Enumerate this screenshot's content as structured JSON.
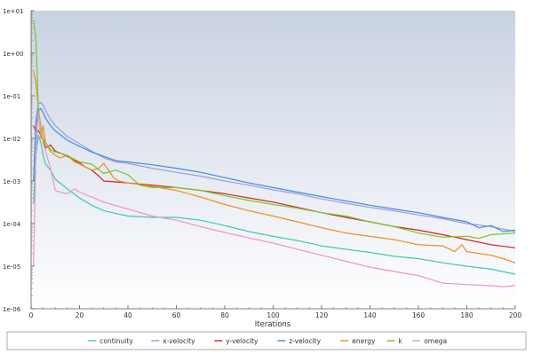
{
  "chart_data": {
    "type": "line",
    "xlabel": "Iterations",
    "ylabel": "",
    "xlim": [
      0,
      200
    ],
    "ylim": [
      1e-06,
      10
    ],
    "yscale": "log",
    "x_ticks": [
      0,
      20,
      40,
      60,
      80,
      100,
      120,
      140,
      160,
      180,
      200
    ],
    "y_ticks": [
      {
        "value": 10,
        "label": "1e+01"
      },
      {
        "value": 1,
        "label": "1e+00"
      },
      {
        "value": 0.1,
        "label": "1e-01"
      },
      {
        "value": 0.01,
        "label": "1e-02"
      },
      {
        "value": 0.001,
        "label": "1e-03"
      },
      {
        "value": 0.0001,
        "label": "1e-04"
      },
      {
        "value": 1e-05,
        "label": "1e-05"
      },
      {
        "value": 1e-06,
        "label": "1e-06"
      }
    ],
    "grid": false,
    "background_gradient": [
      "#c9d2e2",
      "#ffffff"
    ],
    "legend_position": "bottom",
    "series": [
      {
        "name": "continuity",
        "color": "#40c8b0",
        "points": [
          [
            1,
            0.0003
          ],
          [
            2,
            0.004
          ],
          [
            3,
            0.012
          ],
          [
            4,
            0.008
          ],
          [
            5,
            0.004
          ],
          [
            6,
            0.0025
          ],
          [
            8,
            0.0018
          ],
          [
            10,
            0.0011
          ],
          [
            15,
            0.00065
          ],
          [
            20,
            0.0004
          ],
          [
            25,
            0.00027
          ],
          [
            30,
            0.0002
          ],
          [
            40,
            0.00015
          ],
          [
            50,
            0.00014
          ],
          [
            60,
            0.00014
          ],
          [
            70,
            0.00012
          ],
          [
            80,
            9e-05
          ],
          [
            90,
            6.5e-05
          ],
          [
            100,
            5e-05
          ],
          [
            110,
            4e-05
          ],
          [
            120,
            3e-05
          ],
          [
            130,
            2.5e-05
          ],
          [
            140,
            2.1e-05
          ],
          [
            150,
            1.7e-05
          ],
          [
            160,
            1.5e-05
          ],
          [
            170,
            1.2e-05
          ],
          [
            180,
            1e-05
          ],
          [
            190,
            8.5e-06
          ],
          [
            200,
            6.5e-06
          ]
        ]
      },
      {
        "name": "x-velocity",
        "color": "#a098e0",
        "points": [
          [
            1,
            0.001
          ],
          [
            2,
            0.03
          ],
          [
            3,
            0.065
          ],
          [
            4,
            0.07
          ],
          [
            5,
            0.06
          ],
          [
            6,
            0.045
          ],
          [
            8,
            0.028
          ],
          [
            10,
            0.02
          ],
          [
            15,
            0.011
          ],
          [
            20,
            0.0075
          ],
          [
            25,
            0.005
          ],
          [
            30,
            0.0035
          ],
          [
            35,
            0.0028
          ],
          [
            40,
            0.0026
          ],
          [
            50,
            0.002
          ],
          [
            60,
            0.0016
          ],
          [
            70,
            0.0013
          ],
          [
            80,
            0.001
          ],
          [
            90,
            0.0008
          ],
          [
            100,
            0.00062
          ],
          [
            110,
            0.0005
          ],
          [
            120,
            0.00038
          ],
          [
            130,
            0.0003
          ],
          [
            140,
            0.00024
          ],
          [
            150,
            0.0002
          ],
          [
            160,
            0.00016
          ],
          [
            170,
            0.00013
          ],
          [
            180,
            0.0001
          ],
          [
            190,
            8.5e-05
          ],
          [
            200,
            6.5e-05
          ]
        ]
      },
      {
        "name": "y-velocity",
        "color": "#d42020",
        "points": [
          [
            1,
            0.02
          ],
          [
            2,
            0.015
          ],
          [
            3,
            0.015
          ],
          [
            4,
            0.012
          ],
          [
            5,
            0.009
          ],
          [
            6,
            0.006
          ],
          [
            8,
            0.007
          ],
          [
            10,
            0.005
          ],
          [
            12,
            0.0045
          ],
          [
            15,
            0.0038
          ],
          [
            18,
            0.003
          ],
          [
            20,
            0.0027
          ],
          [
            22,
            0.0022
          ],
          [
            25,
            0.0018
          ],
          [
            28,
            0.0013
          ],
          [
            30,
            0.001
          ],
          [
            35,
            0.00095
          ],
          [
            40,
            0.0009
          ],
          [
            50,
            0.0008
          ],
          [
            60,
            0.0007
          ],
          [
            70,
            0.0006
          ],
          [
            80,
            0.0005
          ],
          [
            90,
            0.0004
          ],
          [
            100,
            0.00032
          ],
          [
            110,
            0.00024
          ],
          [
            120,
            0.00018
          ],
          [
            130,
            0.00014
          ],
          [
            140,
            0.00011
          ],
          [
            150,
            8.5e-05
          ],
          [
            160,
            7e-05
          ],
          [
            170,
            5.5e-05
          ],
          [
            180,
            4.2e-05
          ],
          [
            190,
            3.2e-05
          ],
          [
            200,
            2.7e-05
          ]
        ]
      },
      {
        "name": "z-velocity",
        "color": "#3c8edc",
        "points": [
          [
            1,
            0.001
          ],
          [
            2,
            0.02
          ],
          [
            3,
            0.045
          ],
          [
            4,
            0.05
          ],
          [
            5,
            0.04
          ],
          [
            6,
            0.03
          ],
          [
            8,
            0.02
          ],
          [
            10,
            0.015
          ],
          [
            15,
            0.009
          ],
          [
            20,
            0.0065
          ],
          [
            25,
            0.0048
          ],
          [
            30,
            0.0038
          ],
          [
            35,
            0.003
          ],
          [
            40,
            0.0028
          ],
          [
            50,
            0.0024
          ],
          [
            60,
            0.002
          ],
          [
            70,
            0.0016
          ],
          [
            80,
            0.0012
          ],
          [
            90,
            0.0009
          ],
          [
            100,
            0.0007
          ],
          [
            110,
            0.00055
          ],
          [
            120,
            0.00043
          ],
          [
            130,
            0.00034
          ],
          [
            140,
            0.00027
          ],
          [
            150,
            0.00022
          ],
          [
            160,
            0.00018
          ],
          [
            170,
            0.00014
          ],
          [
            180,
            0.00011
          ],
          [
            185,
            8e-05
          ],
          [
            190,
            9e-05
          ],
          [
            195,
            6.5e-05
          ],
          [
            200,
            7e-05
          ]
        ]
      },
      {
        "name": "energy",
        "color": "#f08c1e",
        "points": [
          [
            1,
            0.4
          ],
          [
            2,
            0.2
          ],
          [
            3,
            0.05
          ],
          [
            4,
            0.01
          ],
          [
            5,
            0.02
          ],
          [
            6,
            0.008
          ],
          [
            8,
            0.005
          ],
          [
            10,
            0.004
          ],
          [
            12,
            0.0035
          ],
          [
            15,
            0.004
          ],
          [
            18,
            0.0028
          ],
          [
            20,
            0.0025
          ],
          [
            25,
            0.0018
          ],
          [
            28,
            0.002
          ],
          [
            30,
            0.0026
          ],
          [
            32,
            0.0018
          ],
          [
            34,
            0.0012
          ],
          [
            36,
            0.001
          ],
          [
            40,
            0.0009
          ],
          [
            50,
            0.00075
          ],
          [
            60,
            0.0006
          ],
          [
            70,
            0.00042
          ],
          [
            80,
            0.00028
          ],
          [
            90,
            0.0002
          ],
          [
            100,
            0.00015
          ],
          [
            110,
            0.00011
          ],
          [
            120,
            8e-05
          ],
          [
            130,
            6e-05
          ],
          [
            140,
            5e-05
          ],
          [
            150,
            4.2e-05
          ],
          [
            160,
            3.2e-05
          ],
          [
            170,
            3e-05
          ],
          [
            175,
            2.2e-05
          ],
          [
            178,
            3.2e-05
          ],
          [
            180,
            2.2e-05
          ],
          [
            190,
            1.8e-05
          ],
          [
            195,
            1.5e-05
          ],
          [
            200,
            1.2e-05
          ]
        ]
      },
      {
        "name": "k",
        "color": "#78c828",
        "points": [
          [
            1,
            6
          ],
          [
            2,
            2
          ],
          [
            3,
            0.05
          ],
          [
            4,
            0.02
          ],
          [
            5,
            0.01
          ],
          [
            6,
            0.008
          ],
          [
            8,
            0.0055
          ],
          [
            10,
            0.0048
          ],
          [
            15,
            0.004
          ],
          [
            20,
            0.0028
          ],
          [
            25,
            0.0025
          ],
          [
            30,
            0.0015
          ],
          [
            35,
            0.0018
          ],
          [
            40,
            0.0014
          ],
          [
            45,
            0.0008
          ],
          [
            50,
            0.0007
          ],
          [
            60,
            0.0007
          ],
          [
            70,
            0.0006
          ],
          [
            80,
            0.00045
          ],
          [
            90,
            0.00035
          ],
          [
            100,
            0.00028
          ],
          [
            110,
            0.00023
          ],
          [
            120,
            0.00018
          ],
          [
            130,
            0.00015
          ],
          [
            140,
            0.00011
          ],
          [
            150,
            8.5e-05
          ],
          [
            160,
            6e-05
          ],
          [
            170,
            4.8e-05
          ],
          [
            180,
            5e-05
          ],
          [
            185,
            4.5e-05
          ],
          [
            190,
            5.5e-05
          ],
          [
            200,
            6e-05
          ]
        ]
      },
      {
        "name": "omega",
        "color": "#f094c0",
        "points": [
          [
            1,
            1e-05
          ],
          [
            2,
            0.005
          ],
          [
            3,
            0.04
          ],
          [
            4,
            0.015
          ],
          [
            5,
            0.008
          ],
          [
            6,
            0.005
          ],
          [
            8,
            0.002
          ],
          [
            10,
            0.0006
          ],
          [
            12,
            0.00055
          ],
          [
            15,
            0.0005
          ],
          [
            18,
            0.00065
          ],
          [
            20,
            0.00055
          ],
          [
            25,
            0.00042
          ],
          [
            30,
            0.00032
          ],
          [
            40,
            0.00022
          ],
          [
            50,
            0.00015
          ],
          [
            60,
            0.00012
          ],
          [
            70,
            8.5e-05
          ],
          [
            80,
            6.2e-05
          ],
          [
            90,
            4.6e-05
          ],
          [
            100,
            3.5e-05
          ],
          [
            110,
            2.5e-05
          ],
          [
            120,
            1.8e-05
          ],
          [
            130,
            1.3e-05
          ],
          [
            140,
            9.5e-06
          ],
          [
            150,
            7.5e-06
          ],
          [
            160,
            6e-06
          ],
          [
            170,
            4e-06
          ],
          [
            180,
            3.7e-06
          ],
          [
            190,
            3.5e-06
          ],
          [
            195,
            3.3e-06
          ],
          [
            200,
            3.5e-06
          ]
        ]
      }
    ]
  }
}
